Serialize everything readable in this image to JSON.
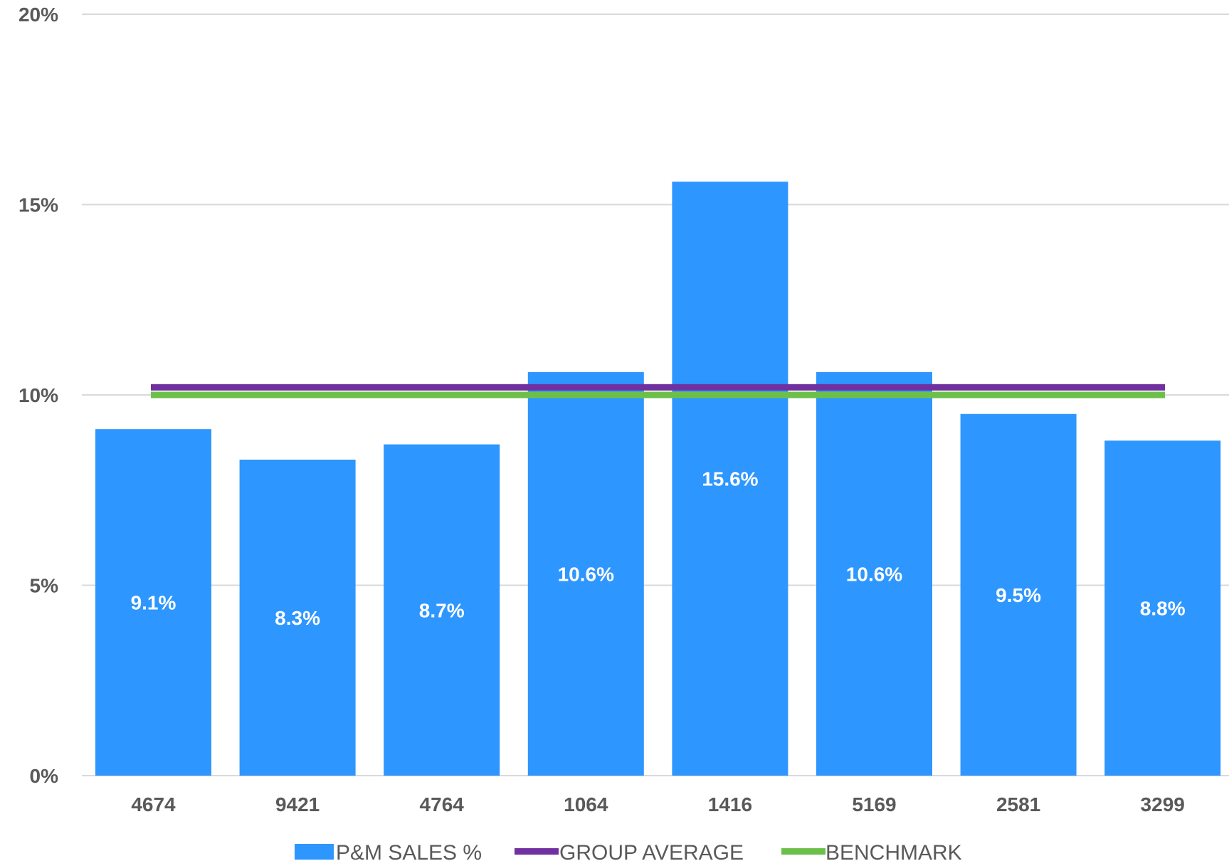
{
  "colors": {
    "bar": "#2e96ff",
    "group_average": "#7030a0",
    "benchmark": "#6cc04a",
    "grid": "#d9d9d9",
    "axis_text": "#595959",
    "data_label": "#ffffff"
  },
  "chart_data": {
    "type": "bar",
    "title": "",
    "xlabel": "",
    "ylabel": "",
    "categories": [
      "4674",
      "9421",
      "4764",
      "1064",
      "1416",
      "5169",
      "2581",
      "3299"
    ],
    "ylim": [
      0,
      20
    ],
    "yticks": [
      0,
      5,
      10,
      15,
      20
    ],
    "ytick_labels": [
      "0%",
      "5%",
      "10%",
      "15%",
      "20%"
    ],
    "grid": true,
    "legend_position": "bottom",
    "series": [
      {
        "name": "P&M SALES %",
        "type": "bar",
        "values": [
          9.1,
          8.3,
          8.7,
          10.6,
          15.6,
          10.6,
          9.5,
          8.8
        ],
        "labels": [
          "9.1%",
          "8.3%",
          "8.7%",
          "10.6%",
          "15.6%",
          "10.6%",
          "9.5%",
          "8.8%"
        ]
      },
      {
        "name": "GROUP AVERAGE",
        "type": "line",
        "value": 10.2
      },
      {
        "name": "BENCHMARK",
        "type": "line",
        "value": 10.0
      }
    ]
  }
}
